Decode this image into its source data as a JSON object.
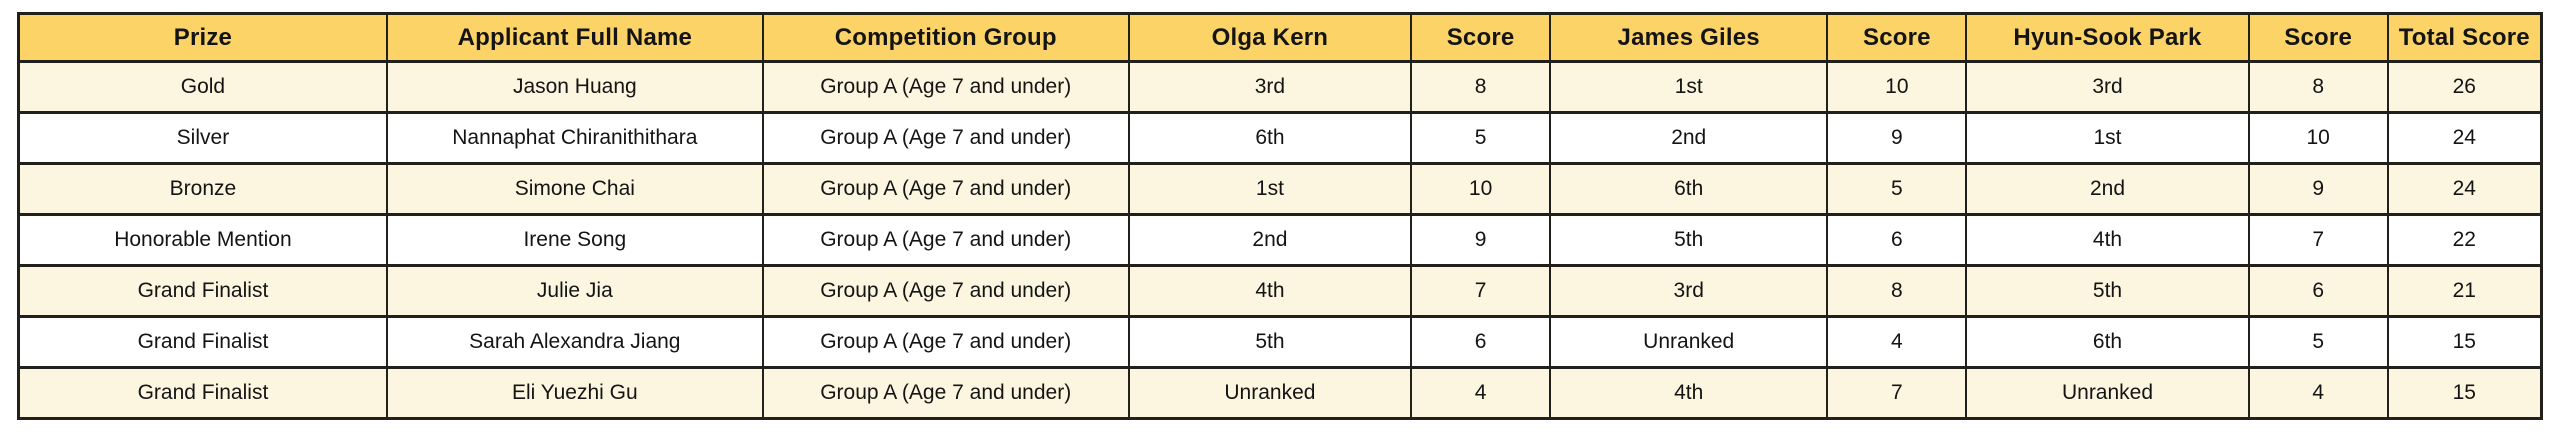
{
  "colors": {
    "header_bg": "#fbd366",
    "stripe_bg": "#fcf5df",
    "row_bg": "#ffffff",
    "border_color": "#21201a",
    "text_color": "#141414"
  },
  "table": {
    "columns": [
      {
        "key": "prize",
        "label": "Prize"
      },
      {
        "key": "applicant-full-name",
        "label": "Applicant Full Name"
      },
      {
        "key": "competition-group",
        "label": "Competition Group"
      },
      {
        "key": "olga-kern-rank",
        "label": "Olga Kern"
      },
      {
        "key": "olga-kern-score",
        "label": "Score"
      },
      {
        "key": "james-giles-rank",
        "label": "James Giles"
      },
      {
        "key": "james-giles-score",
        "label": "Score"
      },
      {
        "key": "hyun-sook-park-rank",
        "label": "Hyun-Sook Park"
      },
      {
        "key": "hyun-sook-park-score",
        "label": "Score"
      },
      {
        "key": "total-score",
        "label": "Total Score"
      }
    ],
    "rows": [
      [
        "Gold",
        "Jason Huang",
        "Group A (Age 7 and under)",
        "3rd",
        "8",
        "1st",
        "10",
        "3rd",
        "8",
        "26"
      ],
      [
        "Silver",
        "Nannaphat Chiranithithara",
        "Group A (Age 7 and under)",
        "6th",
        "5",
        "2nd",
        "9",
        "1st",
        "10",
        "24"
      ],
      [
        "Bronze",
        "Simone Chai",
        "Group A (Age 7 and under)",
        "1st",
        "10",
        "6th",
        "5",
        "2nd",
        "9",
        "24"
      ],
      [
        "Honorable Mention",
        "Irene Song",
        "Group A (Age 7 and under)",
        "2nd",
        "9",
        "5th",
        "6",
        "4th",
        "7",
        "22"
      ],
      [
        "Grand Finalist",
        "Julie Jia",
        "Group A (Age 7 and under)",
        "4th",
        "7",
        "3rd",
        "8",
        "5th",
        "6",
        "21"
      ],
      [
        "Grand Finalist",
        "Sarah Alexandra Jiang",
        "Group A (Age 7 and under)",
        "5th",
        "6",
        "Unranked",
        "4",
        "6th",
        "5",
        "15"
      ],
      [
        "Grand Finalist",
        "Eli Yuezhi Gu",
        "Group A (Age 7 and under)",
        "Unranked",
        "4",
        "4th",
        "7",
        "Unranked",
        "4",
        "15"
      ]
    ]
  }
}
